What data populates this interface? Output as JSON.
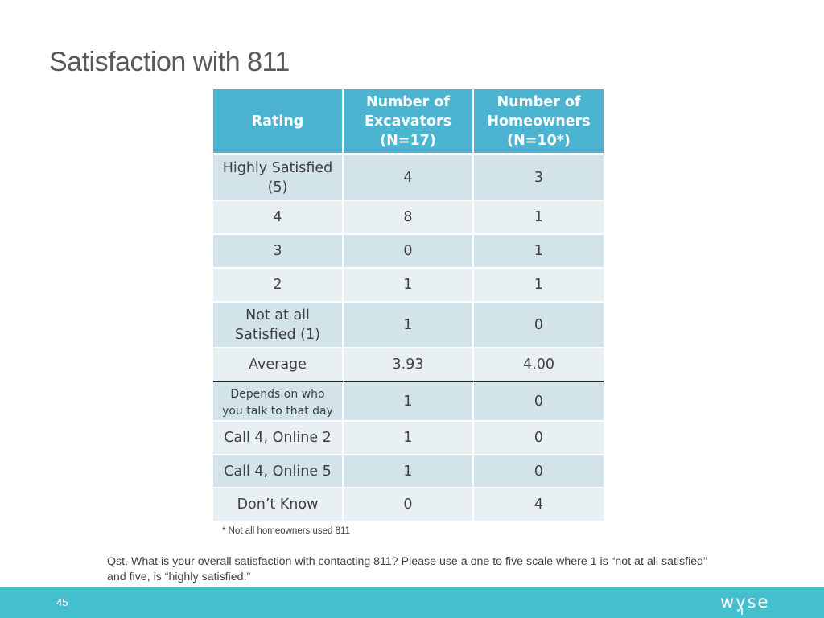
{
  "title": "Satisfaction with 811",
  "table": {
    "headers": [
      [
        "Rating"
      ],
      [
        "Number of",
        "Excavators",
        "(N=17)"
      ],
      [
        "Number of",
        "Homeowners",
        "(N=10*)"
      ]
    ],
    "rows": [
      {
        "rating": [
          "Highly Satisfied",
          "(5)"
        ],
        "excavators": "4",
        "homeowners": "3"
      },
      {
        "rating": [
          "4"
        ],
        "excavators": "8",
        "homeowners": "1"
      },
      {
        "rating": [
          "3"
        ],
        "excavators": "0",
        "homeowners": "1"
      },
      {
        "rating": [
          "2"
        ],
        "excavators": "1",
        "homeowners": "1"
      },
      {
        "rating": [
          "Not at all",
          "Satisfied (1)"
        ],
        "excavators": "1",
        "homeowners": "0"
      },
      {
        "rating": [
          "Average"
        ],
        "excavators": "3.93",
        "homeowners": "4.00"
      },
      {
        "rating": [
          "Depends on who",
          "you talk to that day"
        ],
        "excavators": "1",
        "homeowners": "0"
      },
      {
        "rating": [
          "Call 4, Online 2"
        ],
        "excavators": "1",
        "homeowners": "0"
      },
      {
        "rating": [
          "Call 4, Online 5"
        ],
        "excavators": "1",
        "homeowners": "0"
      },
      {
        "rating": [
          "Don’t Know"
        ],
        "excavators": "0",
        "homeowners": "4"
      }
    ]
  },
  "footnote": "* Not all homeowners used 811",
  "question": "Qst. What is your overall satisfaction with contacting 811? Please use a one to five scale where 1 is “not at all satisfied” and five, is “highly satisfied.”",
  "footer": {
    "page_number": "45",
    "logo_text": "wyse",
    "bar_color": "#43bfce"
  },
  "colors": {
    "header_bg": "#4cb3d1",
    "row_dark": "#d2e3ea",
    "row_light": "#e9f0f4"
  }
}
